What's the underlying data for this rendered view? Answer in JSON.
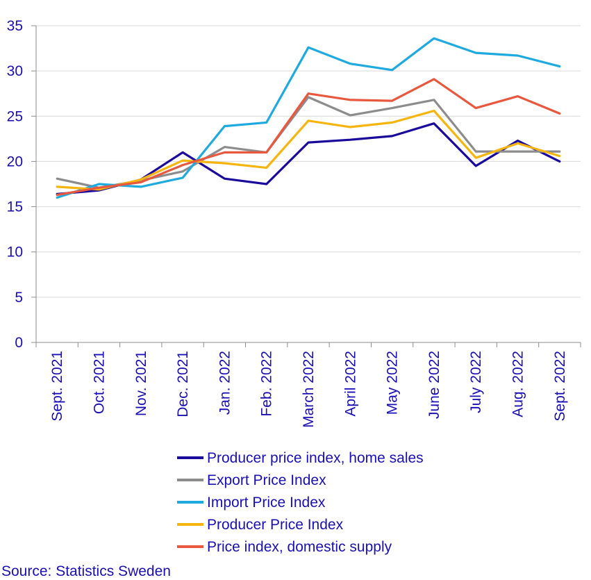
{
  "chart_data": {
    "type": "line",
    "title": "",
    "xlabel": "",
    "ylabel": "",
    "ylim": [
      0,
      35
    ],
    "yticks": [
      0,
      5,
      10,
      15,
      20,
      25,
      30,
      35
    ],
    "grid": "horizontal",
    "legend_position": "bottom",
    "categories": [
      "Sept. 2021",
      "Oct. 2021",
      "Nov. 2021",
      "Dec. 2021",
      "Jan. 2022",
      "Feb. 2022",
      "March 2022",
      "April 2022",
      "May 2022",
      "June 2022",
      "July 2022",
      "Aug. 2022",
      "Sept. 2022"
    ],
    "series": [
      {
        "name": "Producer price index, home sales",
        "color": "#1a0a9c",
        "values": [
          16.4,
          16.8,
          18.0,
          21.0,
          18.1,
          17.5,
          22.1,
          22.4,
          22.8,
          24.2,
          19.5,
          22.3,
          20.0
        ]
      },
      {
        "name": "Export Price Index",
        "color": "#8c8c8c",
        "values": [
          18.1,
          17.1,
          17.9,
          18.9,
          21.6,
          21.0,
          27.1,
          25.1,
          25.9,
          26.8,
          21.1,
          21.1,
          21.1
        ]
      },
      {
        "name": "Import Price Index",
        "color": "#1eaadf",
        "values": [
          16.0,
          17.5,
          17.2,
          18.2,
          23.9,
          24.3,
          32.6,
          30.8,
          30.1,
          33.6,
          32.0,
          31.7,
          30.5
        ]
      },
      {
        "name": "Producer Price Index",
        "color": "#f6b40e",
        "values": [
          17.2,
          16.9,
          18.0,
          20.1,
          19.8,
          19.3,
          24.5,
          23.8,
          24.3,
          25.6,
          20.4,
          22.0,
          20.6
        ]
      },
      {
        "name": "Price index, domestic supply",
        "color": "#e8583e",
        "values": [
          16.3,
          17.1,
          17.7,
          19.6,
          21.0,
          21.0,
          27.5,
          26.8,
          26.7,
          29.1,
          25.9,
          27.2,
          25.3
        ]
      }
    ]
  },
  "source": "Source: Statistics Sweden"
}
